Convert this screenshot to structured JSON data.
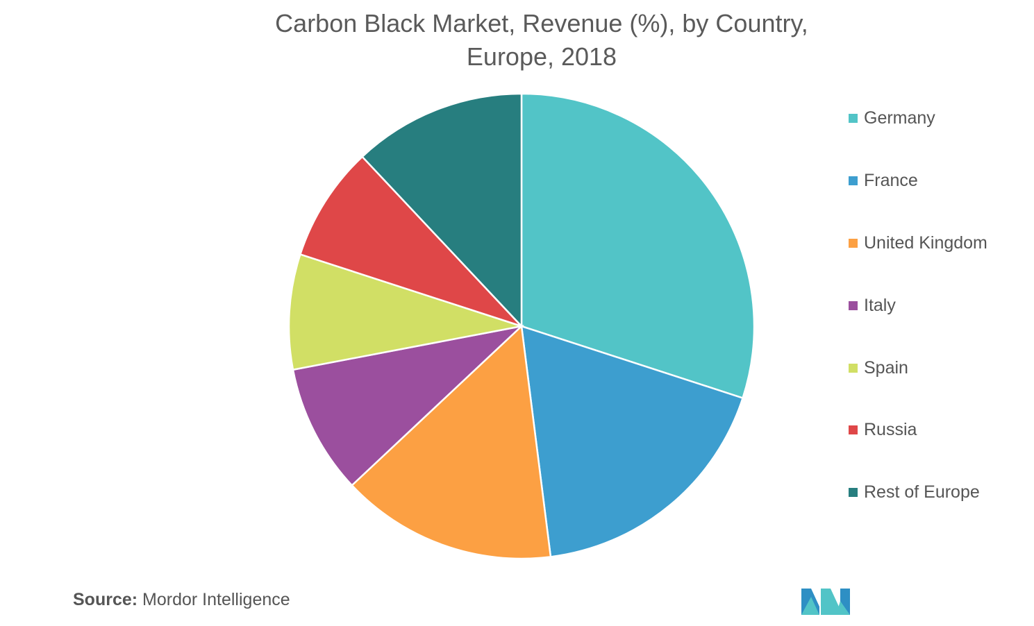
{
  "chart_data": {
    "type": "pie",
    "title": "Carbon Black Market, Revenue (%), by Country, Europe, 2018",
    "title_lines": [
      "Carbon Black Market, Revenue (%), by Country,",
      "Europe, 2018"
    ],
    "categories": [
      "Germany",
      "France",
      "United Kingdom",
      "Italy",
      "Spain",
      "Russia",
      "Rest of Europe"
    ],
    "values": [
      30,
      18,
      15,
      9,
      8,
      8,
      12
    ],
    "colors": [
      "#52c4c7",
      "#3d9ecf",
      "#fca043",
      "#9b4f9e",
      "#d1df65",
      "#df4748",
      "#277e7f"
    ],
    "legend_position": "right"
  },
  "source": {
    "label": "Source:",
    "text": " Mordor Intelligence"
  },
  "logo": {
    "text": "Mordor Intelligence",
    "colors": [
      "#2e8fc4",
      "#52c4c7"
    ]
  }
}
